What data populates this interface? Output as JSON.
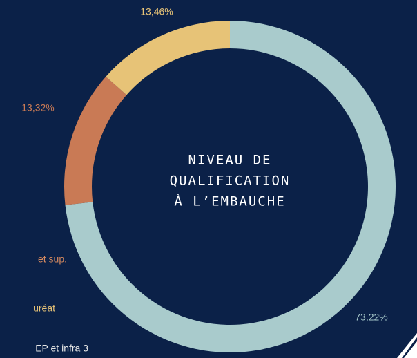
{
  "chart_data": {
    "type": "donut",
    "title_lines": [
      "NIVEAU DE",
      "QUALIFICATION",
      "À L’EMBAUCHE"
    ],
    "categories": [
      "EP et infra 3",
      "et sup.",
      "uréat"
    ],
    "values": [
      73.22,
      13.32,
      13.46
    ],
    "value_labels": [
      "73,22%",
      "13,32%",
      "13,46%"
    ],
    "colors": [
      "#a9cbcc",
      "#c97a55",
      "#e7c377"
    ],
    "legend_colors": [
      "#e6e6e6",
      "#d4895f",
      "#e7c377"
    ]
  }
}
